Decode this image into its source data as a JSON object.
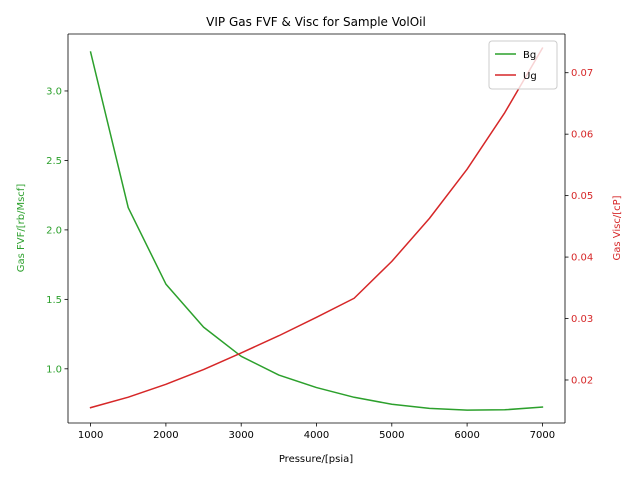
{
  "chart_data": {
    "type": "line",
    "title": "VIP  Gas FVF & Visc for Sample VolOil",
    "xlabel": "Pressure/[psia]",
    "ylabel_left": "Gas FVF/[rb/Mscf]",
    "ylabel_right": "Gas Visc/[cP]",
    "xlim": [
      700,
      7300
    ],
    "ylim_left": [
      0.61,
      3.41
    ],
    "ylim_right": [
      0.013,
      0.0763
    ],
    "x_ticks": [
      1000,
      2000,
      3000,
      4000,
      5000,
      6000,
      7000
    ],
    "y_ticks_left": [
      1.0,
      1.5,
      2.0,
      2.5,
      3.0
    ],
    "y_ticks_right": [
      0.02,
      0.03,
      0.04,
      0.05,
      0.06,
      0.07
    ],
    "x_tick_labels": [
      "1000",
      "2000",
      "3000",
      "4000",
      "5000",
      "6000",
      "7000"
    ],
    "y_tick_labels_left": [
      "1.0",
      "1.5",
      "2.0",
      "2.5",
      "3.0"
    ],
    "y_tick_labels_right": [
      "0.02",
      "0.03",
      "0.04",
      "0.05",
      "0.06",
      "0.07"
    ],
    "legend_position": "top-right",
    "grid": false,
    "colors": {
      "left_axis": "#2ca02c",
      "right_axis": "#d62728",
      "axis": "#000000"
    },
    "x": [
      1000,
      1500,
      2000,
      2500,
      3000,
      3500,
      4000,
      4500,
      5000,
      5500,
      6000,
      6500,
      7000
    ],
    "series": [
      {
        "name": "Bg",
        "axis": "left",
        "color": "#2ca02c",
        "values": [
          3.28,
          2.16,
          1.61,
          1.3,
          1.09,
          0.955,
          0.865,
          0.795,
          0.745,
          0.715,
          0.703,
          0.705,
          0.725
        ]
      },
      {
        "name": "Ug",
        "axis": "right",
        "color": "#d62728",
        "values": [
          0.0155,
          0.0172,
          0.0193,
          0.0217,
          0.0244,
          0.0272,
          0.0302,
          0.0333,
          0.0393,
          0.0463,
          0.0543,
          0.0635,
          0.074
        ]
      }
    ]
  }
}
